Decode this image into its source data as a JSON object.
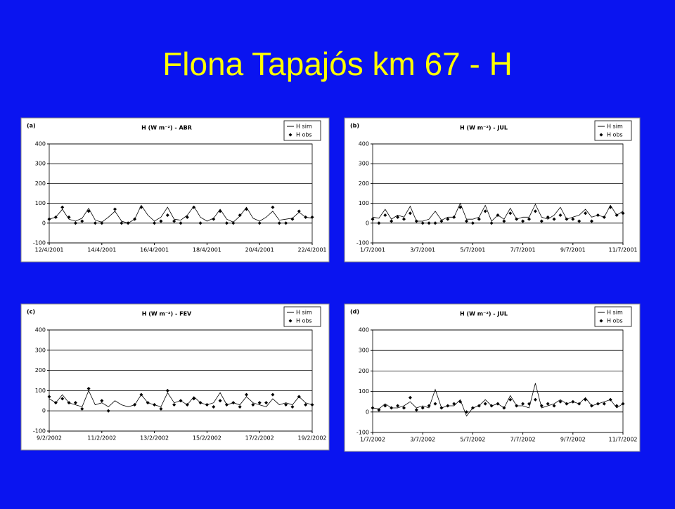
{
  "title": "Flona Tapajós km 67 - H",
  "chart_data": [
    {
      "type": "line",
      "panel": "(a)",
      "title": "H (W m⁻²) - ABR",
      "x": [
        0,
        0.25,
        0.5,
        0.75,
        1,
        1.25,
        1.5,
        1.75,
        2,
        2.25,
        2.5,
        2.75,
        3,
        3.25,
        3.5,
        3.75,
        4,
        4.25,
        4.5,
        4.75,
        5,
        5.25,
        5.5,
        5.75,
        6,
        6.25,
        6.5,
        6.75,
        7,
        7.25,
        7.5,
        7.75,
        8,
        8.25,
        8.5,
        8.75,
        9,
        9.25,
        9.5,
        9.75,
        10
      ],
      "xlim": [
        0,
        10
      ],
      "xticks": [
        {
          "value": 0,
          "label": "12/4/2001"
        },
        {
          "value": 2,
          "label": "14/4/2001"
        },
        {
          "value": 4,
          "label": "16/4/2001"
        },
        {
          "value": 6,
          "label": "18/4/2001"
        },
        {
          "value": 8,
          "label": "20/4/2001"
        },
        {
          "value": 10,
          "label": "22/4/2001"
        }
      ],
      "ylim": [
        -100,
        400
      ],
      "yticks": [
        -100,
        0,
        100,
        200,
        300,
        400
      ],
      "grid": true,
      "series": [
        {
          "name": "H sim",
          "color": "#000000",
          "style": "line",
          "values": [
            20,
            30,
            70,
            20,
            10,
            25,
            75,
            15,
            5,
            30,
            60,
            10,
            0,
            20,
            90,
            40,
            10,
            30,
            80,
            20,
            15,
            40,
            85,
            30,
            10,
            25,
            70,
            20,
            5,
            35,
            80,
            25,
            10,
            30,
            60,
            15,
            20,
            25,
            55,
            30,
            25
          ]
        },
        {
          "name": "H obs",
          "color": "#000000",
          "style": "marker",
          "values": [
            20,
            30,
            80,
            30,
            0,
            10,
            60,
            0,
            0,
            null,
            70,
            0,
            0,
            20,
            80,
            null,
            0,
            10,
            40,
            10,
            0,
            30,
            80,
            0,
            null,
            20,
            60,
            0,
            0,
            40,
            70,
            null,
            0,
            null,
            80,
            0,
            0,
            20,
            60,
            30,
            30
          ]
        }
      ]
    },
    {
      "type": "line",
      "panel": "(b)",
      "title": "H (W m⁻²) - JUL",
      "x": [
        0,
        0.25,
        0.5,
        0.75,
        1,
        1.25,
        1.5,
        1.75,
        2,
        2.25,
        2.5,
        2.75,
        3,
        3.25,
        3.5,
        3.75,
        4,
        4.25,
        4.5,
        4.75,
        5,
        5.25,
        5.5,
        5.75,
        6,
        6.25,
        6.5,
        6.75,
        7,
        7.25,
        7.5,
        7.75,
        8,
        8.25,
        8.5,
        8.75,
        9,
        9.25,
        9.5,
        9.75,
        10
      ],
      "xlim": [
        0,
        10
      ],
      "xticks": [
        {
          "value": 0,
          "label": "1/7/2001"
        },
        {
          "value": 2,
          "label": "3/7/2001"
        },
        {
          "value": 4,
          "label": "5/7/2001"
        },
        {
          "value": 6,
          "label": "7/7/2001"
        },
        {
          "value": 8,
          "label": "9/7/2001"
        },
        {
          "value": 10,
          "label": "11/7/2001"
        }
      ],
      "ylim": [
        -100,
        400
      ],
      "yticks": [
        -100,
        0,
        100,
        200,
        300,
        400
      ],
      "grid": true,
      "series": [
        {
          "name": "H sim",
          "color": "#000000",
          "style": "line",
          "values": [
            30,
            25,
            70,
            20,
            40,
            30,
            85,
            10,
            10,
            20,
            60,
            15,
            30,
            30,
            100,
            20,
            20,
            30,
            90,
            10,
            40,
            20,
            75,
            20,
            30,
            30,
            95,
            30,
            20,
            40,
            80,
            20,
            30,
            40,
            70,
            30,
            40,
            30,
            90,
            40,
            60
          ]
        },
        {
          "name": "H obs",
          "color": "#000000",
          "style": "marker",
          "values": [
            20,
            0,
            40,
            10,
            30,
            20,
            50,
            10,
            0,
            0,
            0,
            10,
            20,
            30,
            80,
            10,
            0,
            20,
            60,
            0,
            40,
            10,
            50,
            20,
            10,
            20,
            60,
            10,
            30,
            20,
            40,
            20,
            20,
            10,
            50,
            10,
            40,
            30,
            80,
            40,
            50
          ]
        }
      ]
    },
    {
      "type": "line",
      "panel": "(c)",
      "title": "H (W m⁻²) - FEV",
      "x": [
        0,
        0.25,
        0.5,
        0.75,
        1,
        1.25,
        1.5,
        1.75,
        2,
        2.25,
        2.5,
        2.75,
        3,
        3.25,
        3.5,
        3.75,
        4,
        4.25,
        4.5,
        4.75,
        5,
        5.25,
        5.5,
        5.75,
        6,
        6.25,
        6.5,
        6.75,
        7,
        7.25,
        7.5,
        7.75,
        8,
        8.25,
        8.5,
        8.75,
        9,
        9.25,
        9.5,
        9.75,
        10
      ],
      "xlim": [
        0,
        10
      ],
      "xticks": [
        {
          "value": 0,
          "label": "9/2/2002"
        },
        {
          "value": 2,
          "label": "11/2/2002"
        },
        {
          "value": 4,
          "label": "13/2/2002"
        },
        {
          "value": 6,
          "label": "15/2/2002"
        },
        {
          "value": 8,
          "label": "17/2/2002"
        },
        {
          "value": 10,
          "label": "19/2/2002"
        }
      ],
      "ylim": [
        -100,
        400
      ],
      "yticks": [
        -100,
        0,
        100,
        200,
        300,
        400
      ],
      "grid": true,
      "series": [
        {
          "name": "H sim",
          "color": "#000000",
          "style": "line",
          "values": [
            60,
            40,
            80,
            40,
            30,
            20,
            100,
            30,
            40,
            20,
            50,
            30,
            20,
            30,
            80,
            40,
            30,
            20,
            90,
            40,
            50,
            30,
            70,
            40,
            30,
            40,
            90,
            30,
            40,
            30,
            70,
            40,
            30,
            20,
            60,
            30,
            40,
            30,
            70,
            40,
            30
          ]
        },
        {
          "name": "H obs",
          "color": "#000000",
          "style": "marker",
          "values": [
            70,
            40,
            60,
            40,
            40,
            10,
            110,
            null,
            50,
            0,
            null,
            null,
            null,
            30,
            80,
            40,
            30,
            10,
            100,
            30,
            50,
            30,
            60,
            40,
            30,
            20,
            50,
            30,
            40,
            20,
            80,
            30,
            40,
            40,
            80,
            null,
            30,
            20,
            70,
            30,
            30
          ]
        }
      ]
    },
    {
      "type": "line",
      "panel": "(d)",
      "title": "H (W m⁻²) - JUL",
      "x": [
        0,
        0.25,
        0.5,
        0.75,
        1,
        1.25,
        1.5,
        1.75,
        2,
        2.25,
        2.5,
        2.75,
        3,
        3.25,
        3.5,
        3.75,
        4,
        4.25,
        4.5,
        4.75,
        5,
        5.25,
        5.5,
        5.75,
        6,
        6.25,
        6.5,
        6.75,
        7,
        7.25,
        7.5,
        7.75,
        8,
        8.25,
        8.5,
        8.75,
        9,
        9.25,
        9.5,
        9.75,
        10
      ],
      "xlim": [
        0,
        10
      ],
      "xticks": [
        {
          "value": 0,
          "label": "1/7/2002"
        },
        {
          "value": 2,
          "label": "3/7/2002"
        },
        {
          "value": 4,
          "label": "5/7/2002"
        },
        {
          "value": 6,
          "label": "7/7/2002"
        },
        {
          "value": 8,
          "label": "9/7/2002"
        },
        {
          "value": 10,
          "label": "11/7/2002"
        }
      ],
      "ylim": [
        -100,
        400
      ],
      "yticks": [
        -100,
        0,
        100,
        200,
        300,
        400
      ],
      "grid": true,
      "series": [
        {
          "name": "H sim",
          "color": "#000000",
          "style": "line",
          "values": [
            20,
            15,
            40,
            20,
            20,
            30,
            50,
            20,
            30,
            20,
            110,
            20,
            30,
            30,
            60,
            -20,
            20,
            30,
            60,
            30,
            40,
            20,
            80,
            30,
            30,
            20,
            140,
            20,
            30,
            40,
            60,
            40,
            50,
            40,
            70,
            30,
            40,
            50,
            60,
            20,
            40
          ]
        },
        {
          "name": "H obs",
          "color": "#000000",
          "style": "marker",
          "values": [
            20,
            10,
            30,
            20,
            30,
            20,
            70,
            10,
            20,
            30,
            40,
            20,
            30,
            40,
            50,
            0,
            20,
            30,
            40,
            30,
            40,
            20,
            60,
            30,
            40,
            40,
            60,
            30,
            40,
            30,
            50,
            40,
            50,
            40,
            60,
            30,
            40,
            40,
            60,
            30,
            40
          ]
        }
      ]
    }
  ]
}
